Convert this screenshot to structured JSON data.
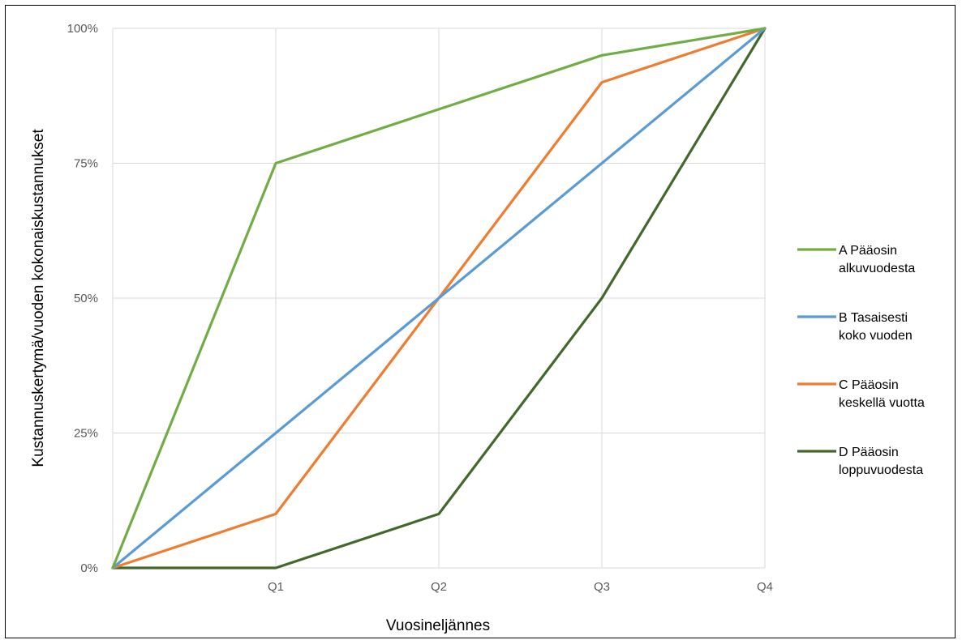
{
  "chart_data": {
    "type": "line",
    "title": "",
    "xlabel": "Vuosineljännes",
    "ylabel": "Kustannuskertymä/vuoden kokonaiskustannukset",
    "x": [
      0,
      1,
      2,
      3,
      4
    ],
    "x_tick_labels": [
      "",
      "Q1",
      "Q2",
      "Q3",
      "Q4"
    ],
    "ylim": [
      0,
      100
    ],
    "y_tick_labels": [
      "0%",
      "25%",
      "50%",
      "75%",
      "100%"
    ],
    "y_ticks": [
      0,
      25,
      50,
      75,
      100
    ],
    "grid": true,
    "legend_position": "right",
    "series": [
      {
        "name": "A Pääosin alkuvuodesta",
        "legend_lines": [
          "A Pääosin",
          "alkuvuodesta"
        ],
        "color": "#70ad47",
        "values": [
          0,
          75,
          85,
          95,
          100
        ]
      },
      {
        "name": "B Tasaisesti koko vuoden",
        "legend_lines": [
          "B Tasaisesti",
          "koko vuoden"
        ],
        "color": "#5b9bd5",
        "values": [
          0,
          25,
          50,
          75,
          100
        ]
      },
      {
        "name": "C Pääosin keskellä vuotta",
        "legend_lines": [
          "C Pääosin",
          "keskellä vuotta"
        ],
        "color": "#ed7d31",
        "values": [
          0,
          10,
          50,
          90,
          100
        ]
      },
      {
        "name": "D Pääosin loppuvuodesta",
        "legend_lines": [
          "D Pääosin",
          "loppuvuodesta"
        ],
        "color": "#43682b",
        "values": [
          0,
          0,
          10,
          50,
          100
        ]
      }
    ]
  }
}
